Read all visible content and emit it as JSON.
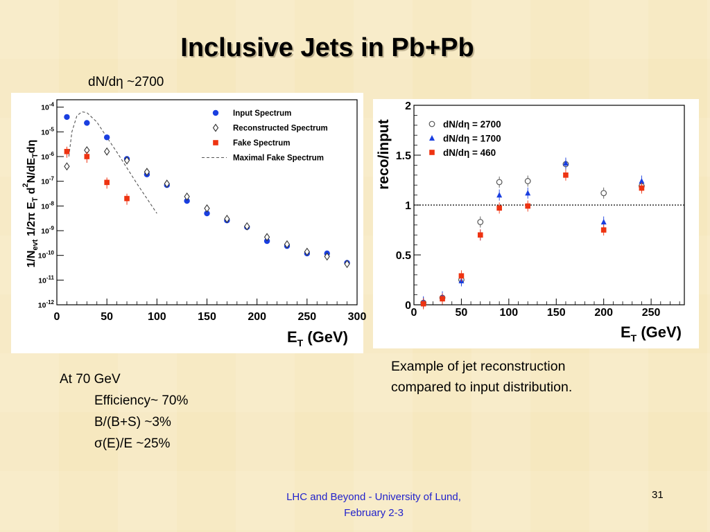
{
  "slide": {
    "title": "Inclusive Jets in Pb+Pb",
    "subtitle": "dN/dη ~2700",
    "caption_line1": "Example of jet reconstruction",
    "caption_line2": "compared to input distribution.",
    "notes": {
      "heading": "At 70 GeV",
      "efficiency": "Efficiency~ 70%",
      "bkg": "B/(B+S) ~3%",
      "resolution": "σ(E)/E ~25%"
    },
    "footer_line1": "LHC and Beyond - University of Lund,",
    "footer_line2": "February 2-3",
    "page_number": "31"
  },
  "chart_data": [
    {
      "type": "scatter",
      "ylabel": "1/N_evt 1/2π E_T d²N/dE_T dη",
      "xlabel": "E_T (GeV)",
      "xlim": [
        0,
        300
      ],
      "ylim_log10": [
        -12,
        -3.7
      ],
      "yscale": "log",
      "x_ticks": [
        "0",
        "50",
        "100",
        "150",
        "200",
        "250",
        "300"
      ],
      "y_ticks": [
        "10^-4",
        "10^-5",
        "10^-6",
        "10^-7",
        "10^-8",
        "10^-9",
        "10^-10",
        "10^-11",
        "10^-12"
      ],
      "legend_position": "top-right",
      "series": [
        {
          "name": "Input Spectrum",
          "marker": "dot",
          "color": "#1a3fe0",
          "x": [
            10,
            30,
            50,
            70,
            90,
            110,
            130,
            150,
            170,
            190,
            210,
            230,
            250,
            270,
            290
          ],
          "y": [
            "4e-5",
            "2.3e-5",
            "6e-6",
            "8e-7",
            "1.9e-7",
            "7e-8",
            "1.6e-8",
            "5e-9",
            "2.6e-9",
            "1.4e-9",
            "3.8e-10",
            "2.4e-10",
            "1.2e-10",
            "1.2e-10",
            "5e-11"
          ]
        },
        {
          "name": "Reconstructed Spectrum",
          "marker": "open-diamond",
          "color": "#333333",
          "x": [
            10,
            30,
            50,
            70,
            90,
            110,
            130,
            150,
            170,
            190,
            210,
            230,
            250,
            270,
            290
          ],
          "y": [
            "4e-7",
            "1.8e-6",
            "1.6e-6",
            "7e-7",
            "2.4e-7",
            "8e-8",
            "2.4e-8",
            "8e-9",
            "3e-9",
            "1.5e-9",
            "5.5e-10",
            "2.8e-10",
            "1.4e-10",
            "9e-11",
            "4.5e-11"
          ]
        },
        {
          "name": "Fake Spectrum",
          "marker": "square",
          "color": "#ee3311",
          "x": [
            10,
            30,
            50,
            70
          ],
          "y": [
            "1.6e-6",
            "1e-6",
            "9e-8",
            "2e-8"
          ]
        },
        {
          "name": "Maximal Fake Spectrum",
          "marker": "dashed-line",
          "color": "#555555",
          "x": [
            12,
            15,
            20,
            25,
            30,
            40,
            50,
            60,
            70,
            80,
            90,
            100
          ],
          "y": [
            "1e-6",
            "1e-5",
            "4.5e-5",
            "6.5e-5",
            "6e-5",
            "2.5e-5",
            "6e-6",
            "1.5e-6",
            "3.5e-7",
            "8e-8",
            "2e-8",
            "5e-9"
          ]
        }
      ]
    },
    {
      "type": "scatter",
      "ylabel": "reco/input",
      "xlabel": "E_T (GeV)",
      "xlim": [
        0,
        285
      ],
      "ylim": [
        0,
        2
      ],
      "x_ticks": [
        "0",
        "50",
        "100",
        "150",
        "200",
        "250"
      ],
      "y_ticks": [
        "0",
        "0.5",
        "1",
        "1.5",
        "2"
      ],
      "reference_line": 1,
      "legend_position": "top-left",
      "series": [
        {
          "name": "dN/dη = 2700",
          "marker": "open-circle",
          "color": "#555555",
          "x": [
            10,
            30,
            50,
            70,
            90,
            120,
            160,
            200,
            240
          ],
          "y": [
            0.02,
            0.07,
            0.25,
            0.83,
            1.23,
            1.24,
            1.41,
            1.12,
            1.19
          ]
        },
        {
          "name": "dN/dη = 1700",
          "marker": "triangle",
          "color": "#1a3fe0",
          "x": [
            10,
            30,
            50,
            70,
            90,
            120,
            160,
            200,
            240
          ],
          "y": [
            0.03,
            0.08,
            0.24,
            0.7,
            1.1,
            1.12,
            1.42,
            0.83,
            1.24
          ]
        },
        {
          "name": "dN/dη = 460",
          "marker": "square",
          "color": "#ee3311",
          "x": [
            10,
            30,
            50,
            70,
            90,
            120,
            160,
            200,
            240
          ],
          "y": [
            0.01,
            0.06,
            0.29,
            0.7,
            0.97,
            0.99,
            1.3,
            0.75,
            1.17
          ]
        }
      ]
    }
  ]
}
